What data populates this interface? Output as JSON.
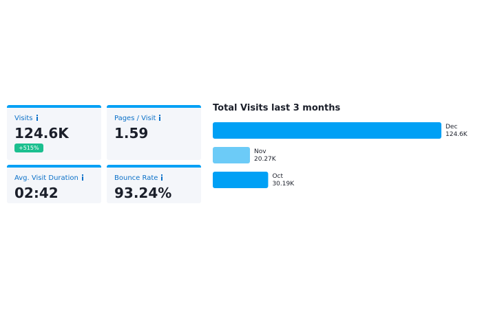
{
  "cards": [
    {
      "label": "Visits",
      "value": "124.6K",
      "badge": "+515%"
    },
    {
      "label": "Pages / Visit",
      "value": "1.59"
    },
    {
      "label": "Avg. Visit Duration",
      "value": "02:42"
    },
    {
      "label": "Bounce Rate",
      "value": "93.24%"
    }
  ],
  "chart_data": {
    "type": "bar",
    "orientation": "horizontal",
    "title": "Total Visits last 3 months",
    "categories": [
      "Dec",
      "Nov",
      "Oct"
    ],
    "values": [
      124.6,
      20.27,
      30.19
    ],
    "value_labels": [
      "124.6K",
      "20.27K",
      "30.19K"
    ],
    "colors": [
      "#00a0f5",
      "#6ccbf7",
      "#00a0f5"
    ]
  }
}
